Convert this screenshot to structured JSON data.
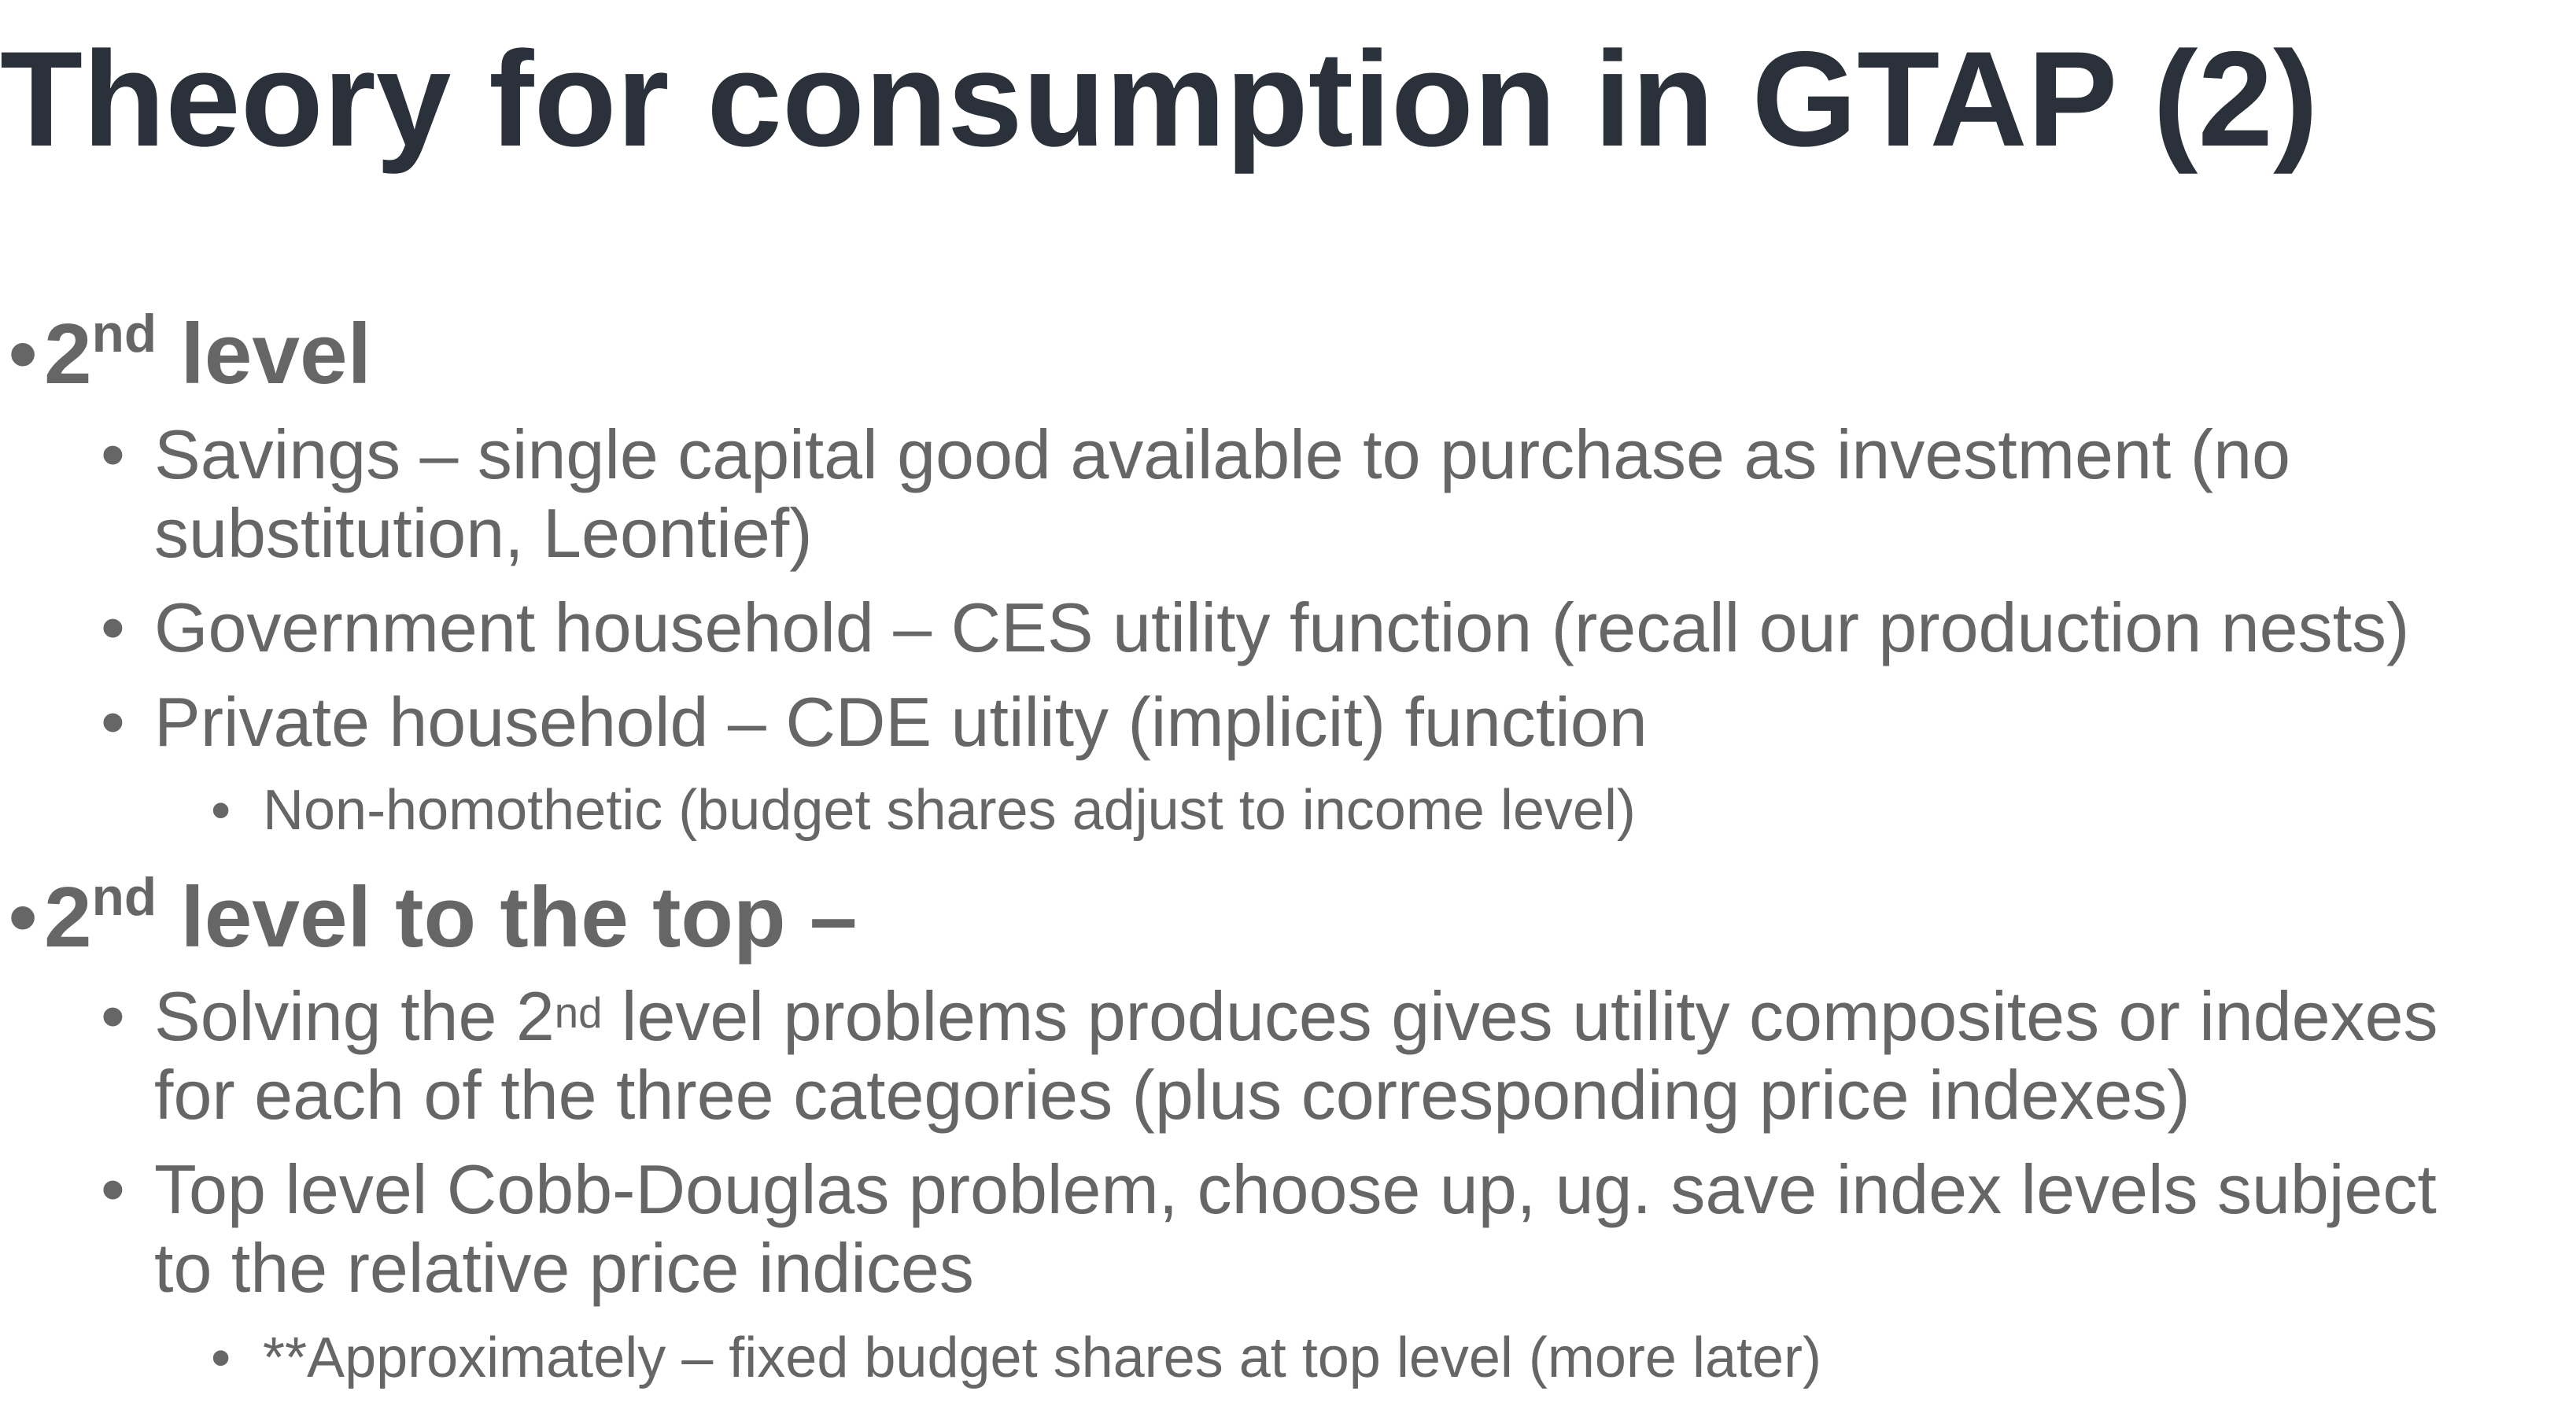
{
  "slide": {
    "title": "Theory for consumption in GTAP (2)",
    "bullet_glyph": "•",
    "sections": [
      {
        "heading_main": "2",
        "heading_sup": "nd",
        "heading_rest": " level",
        "items": [
          {
            "line1": "Savings – single capital good available to purchase as investment (no",
            "line2": "substitution, Leontief)"
          },
          {
            "line1": "Government household – CES utility function (recall our production nests)"
          },
          {
            "line1": "Private household – CDE utility (implicit) function",
            "sub": "Non-homothetic (budget shares adjust to income level)"
          }
        ]
      },
      {
        "heading_main": "2",
        "heading_sup": "nd",
        "heading_rest": " level to the top –",
        "items": [
          {
            "line1_pre": "Solving the 2",
            "line1_sup": "nd",
            "line1_post": " level problems produces gives utility composites or indexes",
            "line2": "for each of the three categories (plus corresponding price indexes)"
          },
          {
            "line1": "Top level Cobb-Douglas problem, choose up, ug. save index levels subject",
            "line2": "to the relative price indices",
            "sub": "**Approximately – fixed budget shares at top level (more later)"
          }
        ]
      }
    ]
  }
}
